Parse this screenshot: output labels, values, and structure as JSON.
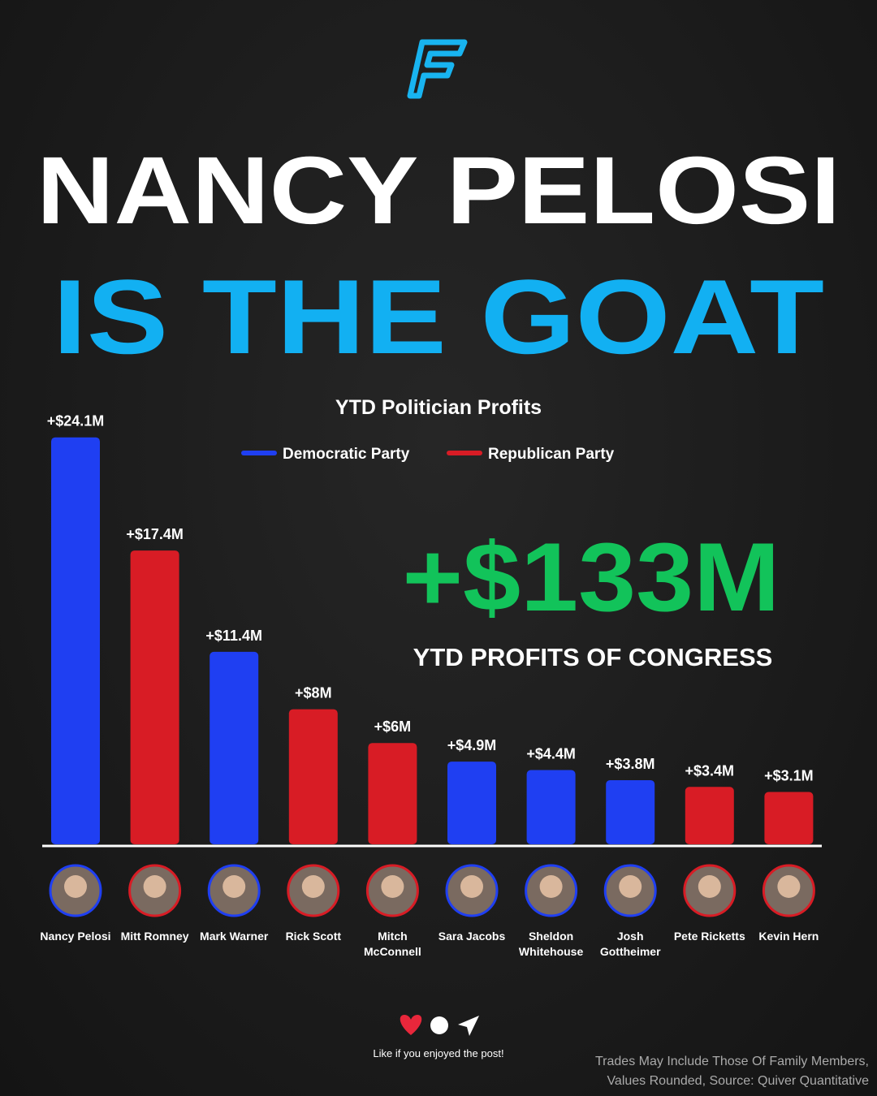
{
  "headline": [
    "NANCY PELOSI",
    "IS THE GOAT"
  ],
  "chart_data": {
    "type": "bar",
    "title": "YTD Politician Profits",
    "categories": [
      "Nancy Pelosi",
      "Mitt Romney",
      "Mark Warner",
      "Rick Scott",
      "Mitch McConnell",
      "Sara Jacobs",
      "Sheldon Whitehouse",
      "Josh Gottheimer",
      "Pete Ricketts",
      "Kevin Hern"
    ],
    "values": [
      24.1,
      17.4,
      11.4,
      8,
      6,
      4.9,
      4.4,
      3.8,
      3.4,
      3.1
    ],
    "value_labels": [
      "+$24.1M",
      "+$17.4M",
      "+$11.4M",
      "+$8M",
      "+$6M",
      "+$4.9M",
      "+$4.4M",
      "+$3.8M",
      "+$3.4M",
      "+$3.1M"
    ],
    "colors": [
      "#1f3ff2",
      "#d81c25",
      "#1f3ff2",
      "#d81c25",
      "#d81c25",
      "#1f3ff2",
      "#1f3ff2",
      "#1f3ff2",
      "#d81c25",
      "#d81c25"
    ],
    "legend": [
      {
        "name": "Democratic Party",
        "color": "#1f3ff2"
      },
      {
        "name": "Republican Party",
        "color": "#d81c25"
      }
    ],
    "total": {
      "value": 133,
      "label": "+$133M"
    },
    "total_caption": "YTD PROFITS OF CONGRESS"
  },
  "footer": {
    "cta": "Like if you enjoyed the post!",
    "disclaimer": [
      "Trades May Include Those Of Family Members,",
      "Values Rounded, Source: Quiver Quantitative"
    ]
  }
}
